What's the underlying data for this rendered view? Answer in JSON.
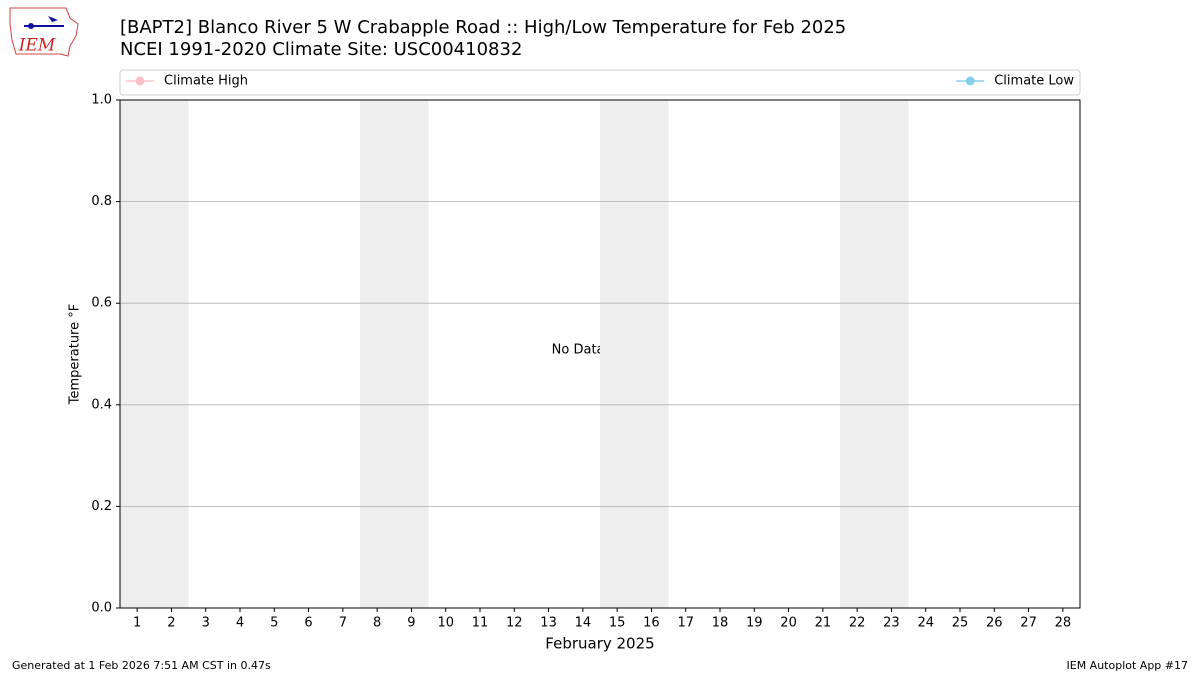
{
  "chart_data": {
    "type": "line",
    "logo_text": "IEM",
    "title": "[BAPT2] Blanco River 5 W Crabapple Road :: High/Low Temperature for Feb 2025",
    "subtitle": "NCEI 1991-2020 Climate Site: USC00410832",
    "x_label": "February 2025",
    "y_label": "Temperature °F",
    "annotation": "No Data Found",
    "x": [
      1,
      2,
      3,
      4,
      5,
      6,
      7,
      8,
      9,
      10,
      11,
      12,
      13,
      14,
      15,
      16,
      17,
      18,
      19,
      20,
      21,
      22,
      23,
      24,
      25,
      26,
      27,
      28
    ],
    "series": [
      {
        "name": "Climate High",
        "color": "#ffc0cb",
        "values": [
          null,
          null,
          null,
          null,
          null,
          null,
          null,
          null,
          null,
          null,
          null,
          null,
          null,
          null,
          null,
          null,
          null,
          null,
          null,
          null,
          null,
          null,
          null,
          null,
          null,
          null,
          null,
          null
        ]
      },
      {
        "name": "Climate Low",
        "color": "#87ceeb",
        "values": [
          null,
          null,
          null,
          null,
          null,
          null,
          null,
          null,
          null,
          null,
          null,
          null,
          null,
          null,
          null,
          null,
          null,
          null,
          null,
          null,
          null,
          null,
          null,
          null,
          null,
          null,
          null,
          null
        ]
      }
    ],
    "shaded_x_ranges": [
      [
        0.5,
        2.5
      ],
      [
        7.5,
        9.5
      ],
      [
        14.5,
        16.5
      ],
      [
        21.5,
        23.5
      ]
    ],
    "shade_color": "#eeeeee",
    "xlim": [
      0.5,
      28.5
    ],
    "xticks": [
      1,
      2,
      3,
      4,
      5,
      6,
      7,
      8,
      9,
      10,
      11,
      12,
      13,
      14,
      15,
      16,
      17,
      18,
      19,
      20,
      21,
      22,
      23,
      24,
      25,
      26,
      27,
      28
    ],
    "ylim": [
      0,
      1
    ],
    "yticks": [
      {
        "value": 0,
        "label": "0.0"
      },
      {
        "value": 0.2,
        "label": "0.2"
      },
      {
        "value": 0.4,
        "label": "0.4"
      },
      {
        "value": 0.6,
        "label": "0.6"
      },
      {
        "value": 0.8,
        "label": "0.8"
      },
      {
        "value": 1,
        "label": "1.0"
      }
    ],
    "grid": "y",
    "footer_left": "Generated at 1 Feb 2026 7:51 AM CST in 0.47s",
    "footer_right": "IEM Autoplot App #17"
  }
}
